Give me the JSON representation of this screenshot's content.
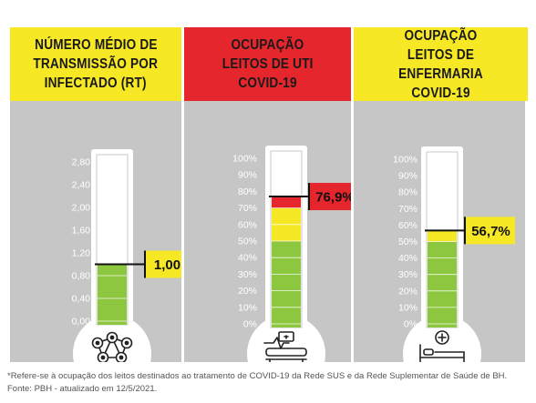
{
  "colors": {
    "header_yellow": "#f6e824",
    "header_red": "#e5262c",
    "background_gray": "#c6c6c6",
    "bar_green": "#8dc63f",
    "bar_yellow": "#f6e824",
    "bar_red": "#e5262c"
  },
  "chart_data": [
    {
      "type": "bar",
      "title_lines": [
        "NÚMERO MÉDIO DE",
        "TRANSMISSÃO POR",
        "INFECTADO (RT)"
      ],
      "value": 1.0,
      "value_label": "1,00",
      "ylim": [
        0,
        2.8
      ],
      "ticks": [
        "2,80",
        "2,40",
        "2,00",
        "1,60",
        "1,20",
        "0,80",
        "0,40",
        "0,00"
      ],
      "tick_values": [
        2.8,
        2.4,
        2.0,
        1.6,
        1.2,
        0.8,
        0.4,
        0.0
      ],
      "icon": "virus-network-icon"
    },
    {
      "type": "bar",
      "title_lines": [
        "OCUPAÇÃO",
        "LEITOS DE UTI",
        "COVID-19"
      ],
      "value": 76.9,
      "value_label": "76,9%",
      "ylim": [
        0,
        100
      ],
      "ticks": [
        "100%",
        "90%",
        "80%",
        "70%",
        "60%",
        "50%",
        "40%",
        "30%",
        "20%",
        "10%",
        "0%"
      ],
      "tick_values": [
        100,
        90,
        80,
        70,
        60,
        50,
        40,
        30,
        20,
        10,
        0
      ],
      "icon": "icu-bed-icon"
    },
    {
      "type": "bar",
      "title_lines": [
        "OCUPAÇÃO",
        "LEITOS DE ENFERMARIA",
        "COVID-19"
      ],
      "value": 56.7,
      "value_label": "56,7%",
      "ylim": [
        0,
        100
      ],
      "ticks": [
        "100%",
        "90%",
        "80%",
        "70%",
        "60%",
        "50%",
        "40%",
        "30%",
        "20%",
        "10%",
        "0%"
      ],
      "tick_values": [
        100,
        90,
        80,
        70,
        60,
        50,
        40,
        30,
        20,
        10,
        0
      ],
      "icon": "hospital-bed-icon"
    }
  ],
  "footnote": {
    "line1": "*Refere-se à ocupação dos leitos destinados ao tratamento de COVID-19 da Rede SUS e da Rede Suplementar de Saúde de BH.",
    "line2": "Fonte: PBH - atualizado em 12/5/2021."
  }
}
